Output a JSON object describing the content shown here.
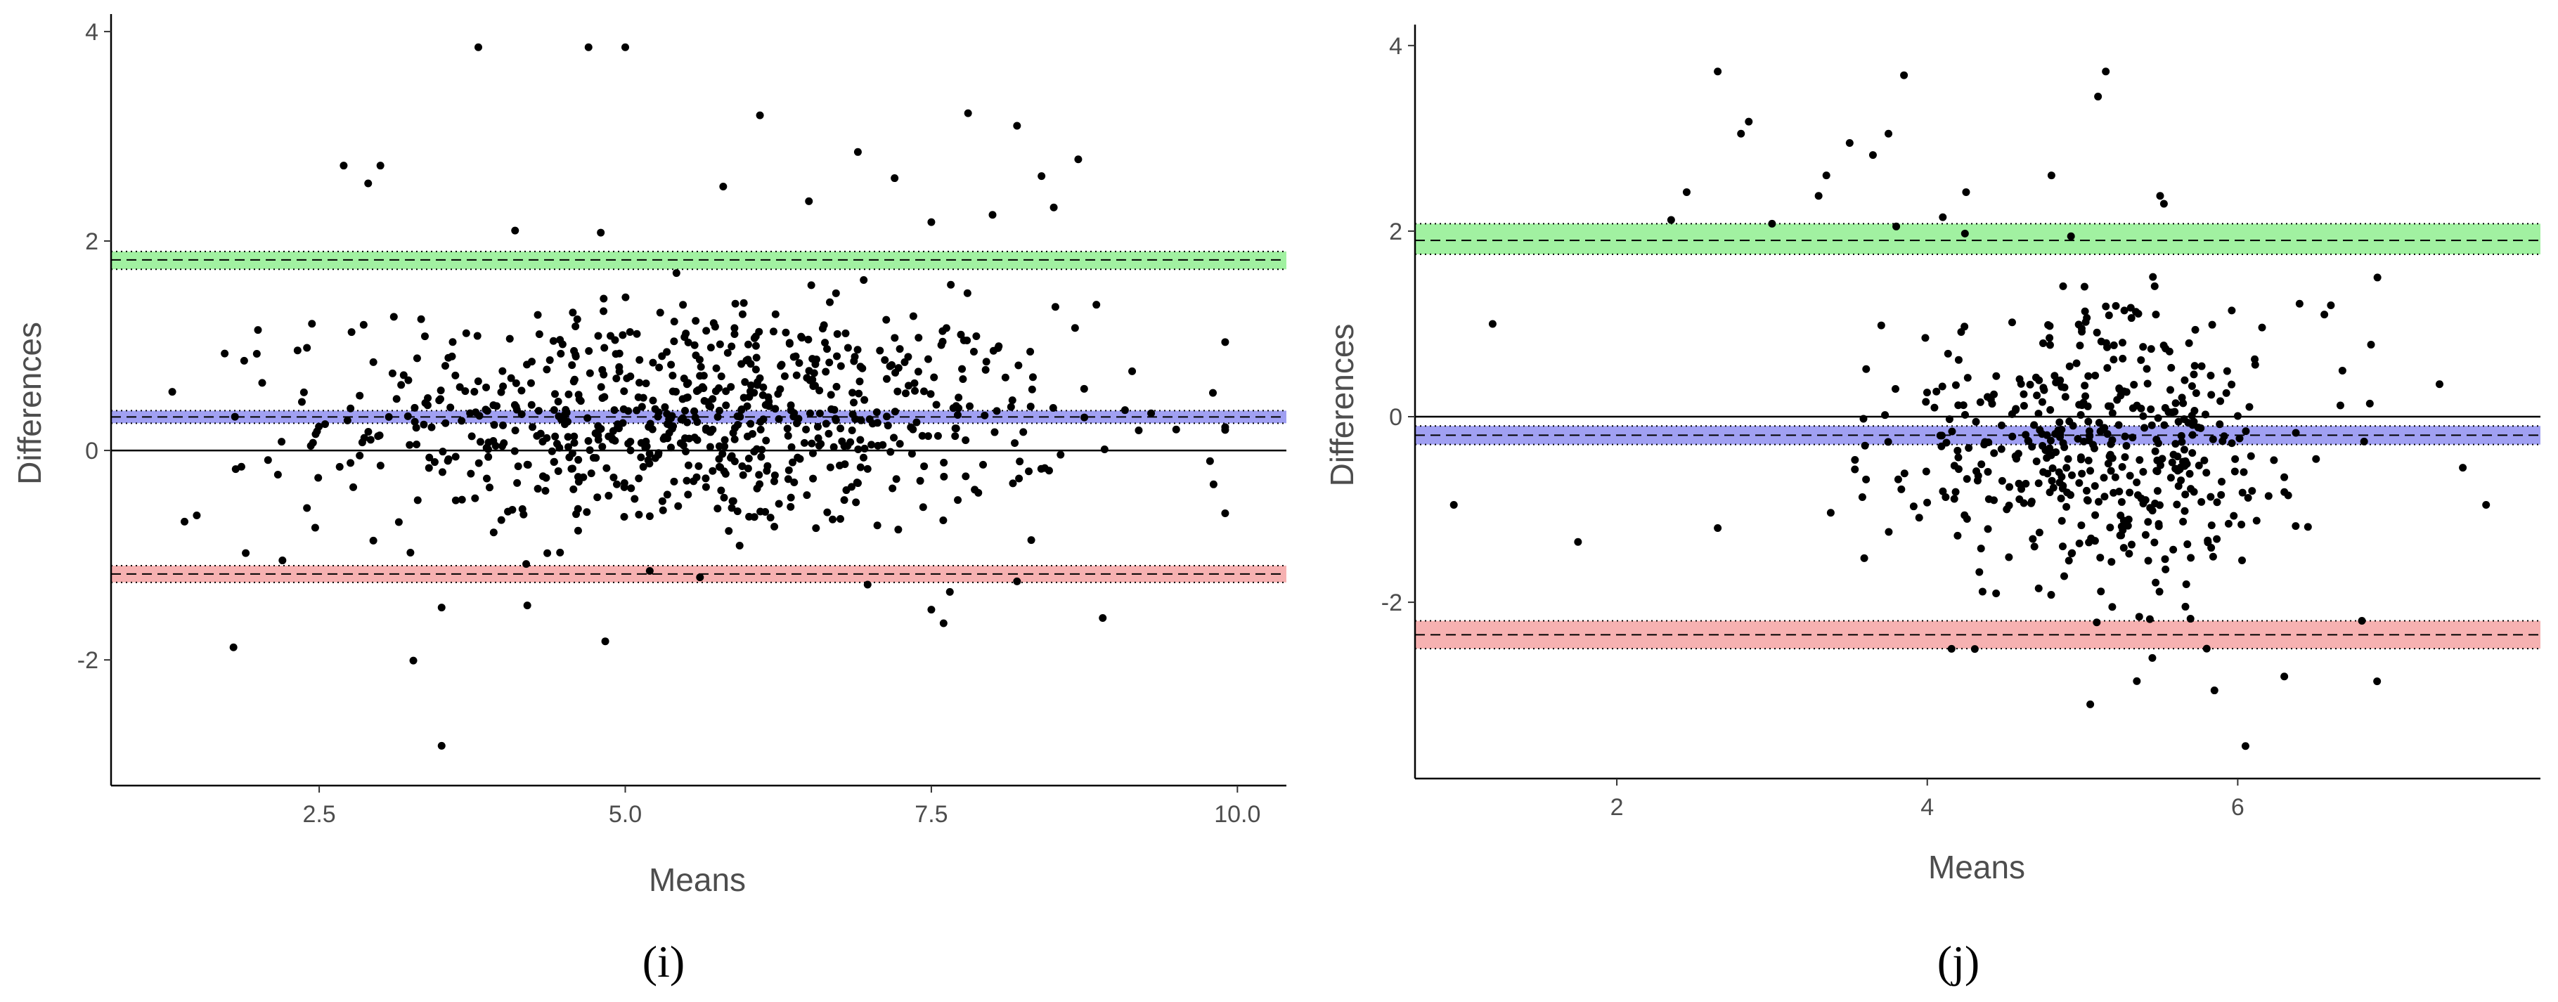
{
  "chart_data": [
    {
      "type": "scatter",
      "panel": "(i)",
      "xlabel": "Means",
      "ylabel": "Differences",
      "xlim": [
        0.8,
        10.4
      ],
      "ylim": [
        -3.2,
        4.1
      ],
      "xticks": [
        2.5,
        5.0,
        7.5,
        10.0
      ],
      "xtick_labels": [
        "2.5",
        "5.0",
        "7.5",
        "10.0"
      ],
      "yticks": [
        -2,
        0,
        2,
        4
      ],
      "ytick_labels": [
        "-2",
        "0",
        "2",
        "4"
      ],
      "zero_line": 0,
      "bands": [
        {
          "name": "upper limit of agreement",
          "value": 1.82,
          "ci": [
            1.73,
            1.9
          ],
          "color": "#90ee90"
        },
        {
          "name": "mean difference",
          "value": 0.32,
          "ci": [
            0.26,
            0.38
          ],
          "color": "#8f8ff0"
        },
        {
          "name": "lower limit of agreement",
          "value": -1.18,
          "ci": [
            -1.26,
            -1.1
          ],
          "color": "#f5a3a3"
        }
      ],
      "grid": false,
      "legend": "none",
      "point_cloud": {
        "count": 750,
        "center": 0.3,
        "sd": 0.55,
        "x_range": [
          1.3,
          9.9
        ]
      },
      "points": [
        [
          3.8,
          3.85
        ],
        [
          4.7,
          3.85
        ],
        [
          5.0,
          3.85
        ],
        [
          6.1,
          3.2
        ],
        [
          7.8,
          3.22
        ],
        [
          8.2,
          3.1
        ],
        [
          2.7,
          2.72
        ],
        [
          3.0,
          2.72
        ],
        [
          2.9,
          2.55
        ],
        [
          5.8,
          2.52
        ],
        [
          6.5,
          2.38
        ],
        [
          6.9,
          2.85
        ],
        [
          7.2,
          2.6
        ],
        [
          8.7,
          2.78
        ],
        [
          8.4,
          2.62
        ],
        [
          8.5,
          2.32
        ],
        [
          8.0,
          2.25
        ],
        [
          4.1,
          2.1
        ],
        [
          4.8,
          2.08
        ],
        [
          7.5,
          2.18
        ],
        [
          3.5,
          -2.82
        ],
        [
          1.8,
          -1.88
        ],
        [
          7.6,
          -1.65
        ],
        [
          8.9,
          -1.6
        ],
        [
          3.5,
          -1.5
        ],
        [
          4.2,
          -1.48
        ],
        [
          7.5,
          -1.52
        ],
        [
          2.0,
          1.15
        ],
        [
          2.4,
          0.98
        ],
        [
          3.3,
          0.88
        ],
        [
          1.4,
          -0.68
        ],
        [
          1.5,
          -0.62
        ],
        [
          1.9,
          -0.98
        ],
        [
          2.2,
          -1.05
        ],
        [
          2.4,
          -0.55
        ],
        [
          9.9,
          -0.6
        ],
        [
          9.8,
          0.55
        ],
        [
          9.5,
          0.2
        ],
        [
          5.2,
          -1.15
        ],
        [
          8.2,
          -1.25
        ]
      ]
    },
    {
      "type": "scatter",
      "panel": "(j)",
      "xlabel": "Means",
      "ylabel": "Differences",
      "xlim": [
        0.7,
        7.95
      ],
      "ylim": [
        -3.9,
        4.15
      ],
      "xticks": [
        2,
        4,
        6
      ],
      "xtick_labels": [
        "2",
        "4",
        "6"
      ],
      "yticks": [
        -2,
        0,
        2,
        4
      ],
      "ytick_labels": [
        "-2",
        "0",
        "2",
        "4"
      ],
      "zero_line": 0,
      "bands": [
        {
          "name": "upper limit of agreement",
          "value": 1.9,
          "ci": [
            1.75,
            2.08
          ],
          "color": "#90ee90"
        },
        {
          "name": "mean difference",
          "value": -0.2,
          "ci": [
            -0.3,
            -0.1
          ],
          "color": "#8f8ff0"
        },
        {
          "name": "lower limit of agreement",
          "value": -2.35,
          "ci": [
            -2.5,
            -2.2
          ],
          "color": "#f5a3a3"
        }
      ],
      "grid": false,
      "legend": "none",
      "point_cloud": {
        "count": 480,
        "center": -0.35,
        "sd": 0.75,
        "x_range": [
          3.2,
          7.0
        ]
      },
      "points": [
        [
          2.65,
          3.72
        ],
        [
          5.15,
          3.72
        ],
        [
          3.85,
          3.68
        ],
        [
          5.1,
          3.45
        ],
        [
          2.85,
          3.18
        ],
        [
          2.8,
          3.05
        ],
        [
          3.5,
          2.95
        ],
        [
          3.75,
          3.05
        ],
        [
          3.65,
          2.82
        ],
        [
          3.35,
          2.6
        ],
        [
          4.8,
          2.6
        ],
        [
          2.45,
          2.42
        ],
        [
          3.3,
          2.38
        ],
        [
          4.25,
          2.42
        ],
        [
          5.5,
          2.38
        ],
        [
          2.35,
          2.12
        ],
        [
          3.0,
          2.08
        ],
        [
          3.8,
          2.05
        ],
        [
          4.1,
          2.15
        ],
        [
          1.2,
          1.0
        ],
        [
          0.95,
          -0.95
        ],
        [
          1.75,
          -1.35
        ],
        [
          2.65,
          -1.2
        ],
        [
          6.05,
          -3.55
        ],
        [
          5.05,
          -3.1
        ],
        [
          5.85,
          -2.95
        ],
        [
          5.35,
          -2.85
        ],
        [
          6.3,
          -2.8
        ],
        [
          5.45,
          -2.6
        ],
        [
          5.8,
          -2.5
        ],
        [
          6.8,
          -2.2
        ],
        [
          7.6,
          -0.95
        ],
        [
          7.45,
          -0.55
        ],
        [
          7.3,
          0.35
        ],
        [
          6.9,
          1.5
        ],
        [
          6.6,
          1.2
        ]
      ]
    }
  ]
}
